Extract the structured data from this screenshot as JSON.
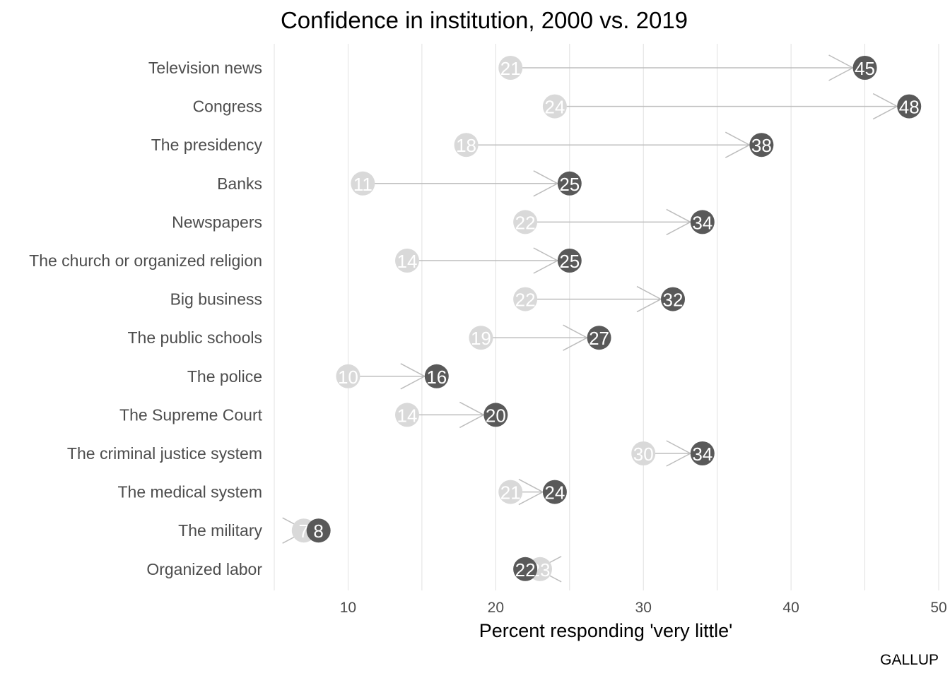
{
  "chart_data": {
    "type": "dumbbell-arrow",
    "title": "Confidence in institution, 2000 vs. 2019",
    "xlabel": "Percent responding 'very little'",
    "caption": "GALLUP",
    "xlim": [
      5,
      50
    ],
    "xticks": [
      10,
      20,
      30,
      40,
      50
    ],
    "grid": true,
    "categories": [
      "Television news",
      "Congress",
      "The presidency",
      "Banks",
      "Newspapers",
      "The church or organized religion",
      "Big business",
      "The public schools",
      "The police",
      "The Supreme Court",
      "The criminal justice system",
      "The medical system",
      "The military",
      "Organized labor"
    ],
    "series": [
      {
        "values": [
          21,
          24,
          18,
          11,
          22,
          14,
          22,
          19,
          10,
          14,
          30,
          21,
          7,
          23
        ]
      },
      {
        "values": [
          45,
          48,
          38,
          25,
          34,
          25,
          32,
          27,
          16,
          20,
          34,
          24,
          8,
          22
        ]
      }
    ],
    "colors": {
      "start": "#d9d9d9",
      "end": "#595959",
      "arrow": "#bdbdbd",
      "grid": "#e0e0e0"
    }
  }
}
